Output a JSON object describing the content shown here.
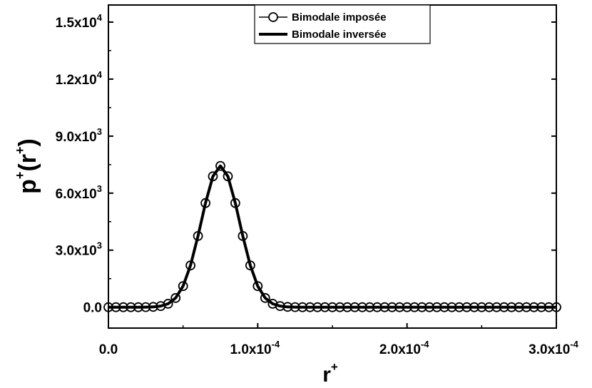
{
  "chart_data": {
    "type": "line",
    "xlabel": {
      "base": "r",
      "sup": "+"
    },
    "ylabel": {
      "p": "p",
      "sup1": "+",
      "open": "(",
      "r": "r",
      "sup2": "+",
      "close": ")"
    },
    "x_ticks": [
      {
        "value": 0.0,
        "mantissa": "0.0",
        "exp": ""
      },
      {
        "value": 0.0001,
        "mantissa": "1.0x10",
        "exp": "-4"
      },
      {
        "value": 0.0002,
        "mantissa": "2.0x10",
        "exp": "-4"
      },
      {
        "value": 0.0003,
        "mantissa": "3.0x10",
        "exp": "-4"
      }
    ],
    "y_ticks": [
      {
        "value": 0,
        "mantissa": "0.0",
        "exp": ""
      },
      {
        "value": 3000,
        "mantissa": "3.0x10",
        "exp": "3"
      },
      {
        "value": 6000,
        "mantissa": "6.0x10",
        "exp": "3"
      },
      {
        "value": 9000,
        "mantissa": "9.0x10",
        "exp": "3"
      },
      {
        "value": 12000,
        "mantissa": "1.2x10",
        "exp": "4"
      },
      {
        "value": 15000,
        "mantissa": "1.5x10",
        "exp": "4"
      }
    ],
    "xlim": [
      0,
      0.0003
    ],
    "ylim": [
      -1100,
      15900
    ],
    "grid": false,
    "legend_position": "top-right",
    "series": [
      {
        "name": "Bimodale imposée",
        "style": "line-with-open-circles",
        "color": "#000000",
        "x": [
          0.0,
          5e-06,
          1e-05,
          1.5e-05,
          2e-05,
          2.5e-05,
          3e-05,
          3.5e-05,
          4e-05,
          4.5e-05,
          5e-05,
          5.5e-05,
          6e-05,
          6.5e-05,
          7e-05,
          7.5e-05,
          8e-05,
          8.5e-05,
          9e-05,
          9.5e-05,
          0.0001,
          0.000105,
          0.00011,
          0.000115,
          0.00012,
          0.000125,
          0.00013,
          0.000135,
          0.00014,
          0.000145,
          0.00015,
          0.000155,
          0.00016,
          0.000165,
          0.00017,
          0.000175,
          0.00018,
          0.000185,
          0.00019,
          0.000195,
          0.0002,
          0.000205,
          0.00021,
          0.000215,
          0.00022,
          0.000225,
          0.00023,
          0.000235,
          0.00024,
          0.000245,
          0.00025,
          0.000255,
          0.00026,
          0.000265,
          0.00027,
          0.000275,
          0.00028,
          0.000285,
          0.00029,
          0.000295,
          0.0003
        ],
        "y": [
          0,
          0,
          0,
          0,
          1,
          4,
          16,
          58,
          180,
          482,
          1111,
          2200,
          3744,
          5480,
          6886,
          7433,
          6886,
          5480,
          3744,
          2200,
          1111,
          482,
          180,
          58,
          16,
          4,
          1,
          0,
          0,
          0,
          0,
          0,
          0,
          0,
          0,
          0,
          0,
          0,
          0,
          0,
          0,
          0,
          0,
          0,
          0,
          0,
          0,
          0,
          0,
          0,
          0,
          0,
          0,
          0,
          0,
          0,
          0,
          0,
          0,
          0,
          0
        ]
      },
      {
        "name": "Bimodale inversée",
        "style": "thick-line",
        "color": "#000000",
        "x": [
          0.0,
          5e-06,
          1e-05,
          1.5e-05,
          2e-05,
          2.5e-05,
          3e-05,
          3.5e-05,
          4e-05,
          4.5e-05,
          5e-05,
          5.5e-05,
          6e-05,
          6.5e-05,
          7e-05,
          7.5e-05,
          8e-05,
          8.5e-05,
          9e-05,
          9.5e-05,
          0.0001,
          0.000105,
          0.00011,
          0.000115,
          0.00012,
          0.000125,
          0.00013,
          0.000135,
          0.00014,
          0.000145,
          0.00015,
          0.000155,
          0.00016,
          0.000165,
          0.00017,
          0.000175,
          0.00018,
          0.000185,
          0.00019,
          0.000195,
          0.0002,
          0.000205,
          0.00021,
          0.000215,
          0.00022,
          0.000225,
          0.00023,
          0.000235,
          0.00024,
          0.000245,
          0.00025,
          0.000255,
          0.00026,
          0.000265,
          0.00027,
          0.000275,
          0.00028,
          0.000285,
          0.00029,
          0.000295,
          0.0003
        ],
        "y": [
          0,
          0,
          0,
          0,
          1,
          4,
          16,
          58,
          180,
          482,
          1111,
          2200,
          3744,
          5480,
          6886,
          7433,
          6886,
          5480,
          3744,
          2200,
          1111,
          482,
          180,
          58,
          16,
          4,
          1,
          0,
          0,
          0,
          0,
          0,
          0,
          0,
          0,
          0,
          0,
          0,
          0,
          0,
          0,
          0,
          0,
          0,
          0,
          0,
          0,
          0,
          0,
          0,
          0,
          0,
          0,
          0,
          0,
          0,
          0,
          0,
          0,
          0,
          0
        ]
      }
    ]
  }
}
